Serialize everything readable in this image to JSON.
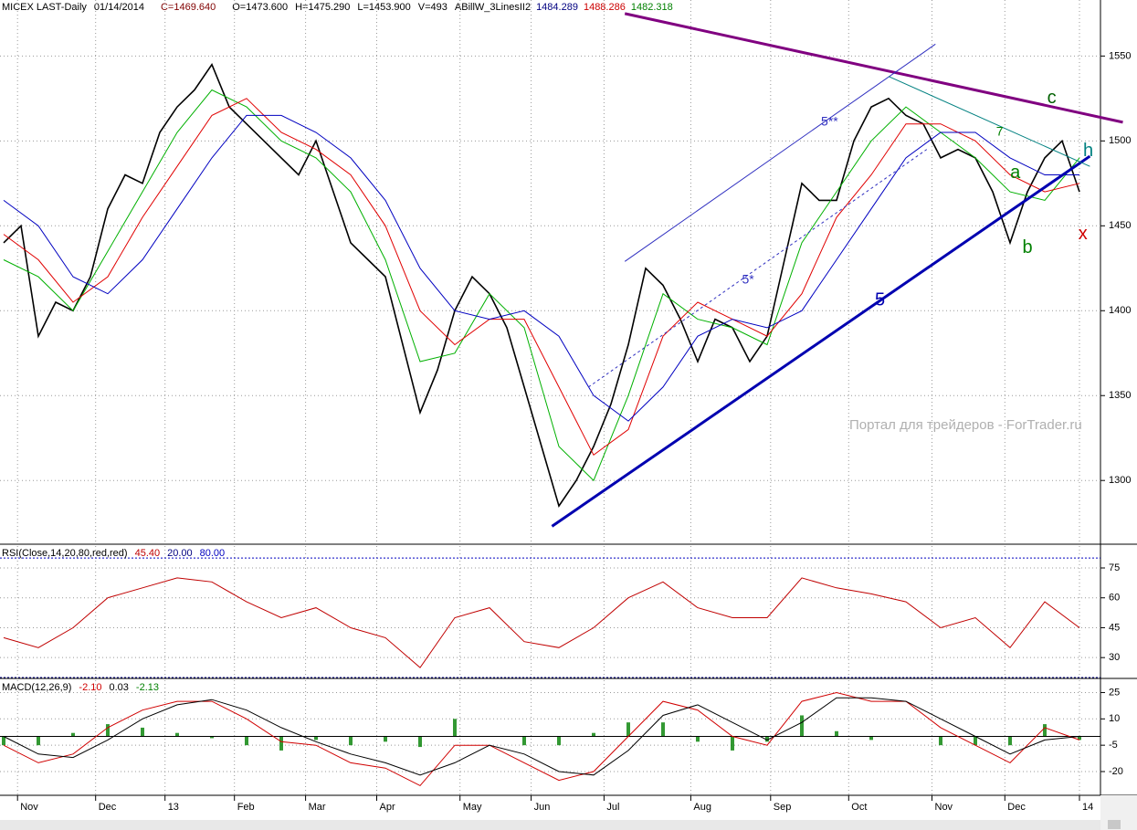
{
  "header": {
    "title": "MICEX LAST-Daily",
    "date": "01/14/2014",
    "close": "C=1469.640",
    "open": "O=1473.600",
    "high": "H=1475.290",
    "low": "L=1453.900",
    "volume": "V=493",
    "indicator": "ABillW_3LinesII2",
    "indicator_values": [
      "1484.289",
      "1488.286",
      "1482.318"
    ],
    "indicator_colors": [
      "#000080",
      "#cc0000",
      "#008000"
    ]
  },
  "watermark": "Портал для трейдеров - ForTrader.ru",
  "chart_data": [
    {
      "type": "line",
      "x": [
        0,
        1,
        2,
        3,
        4,
        5,
        6,
        7,
        8,
        9,
        10,
        11,
        12,
        13,
        14,
        15,
        16,
        17,
        18,
        19,
        20,
        21,
        22,
        23,
        24,
        25,
        26,
        27,
        28,
        29,
        30,
        31,
        32,
        33,
        34,
        35,
        36,
        37,
        38,
        39,
        40,
        41,
        42,
        43,
        44,
        45,
        46,
        47,
        48,
        49,
        50,
        51,
        52,
        53,
        54,
        55,
        56,
        57,
        58,
        59,
        60,
        61,
        62
      ],
      "xlim": [
        0,
        63
      ],
      "xticks": [
        {
          "value": 0.8,
          "label": "Nov"
        },
        {
          "value": 5.3,
          "label": "Dec"
        },
        {
          "value": 9.3,
          "label": "13"
        },
        {
          "value": 13.3,
          "label": "Feb"
        },
        {
          "value": 17.4,
          "label": "Mar"
        },
        {
          "value": 21.5,
          "label": "Apr"
        },
        {
          "value": 26.3,
          "label": "May"
        },
        {
          "value": 30.4,
          "label": "Jun"
        },
        {
          "value": 34.6,
          "label": "Jul"
        },
        {
          "value": 39.6,
          "label": "Aug"
        },
        {
          "value": 44.2,
          "label": "Sep"
        },
        {
          "value": 48.7,
          "label": "Oct"
        },
        {
          "value": 53.5,
          "label": "Nov"
        },
        {
          "value": 57.7,
          "label": "Dec"
        },
        {
          "value": 62,
          "label": "14"
        }
      ],
      "ylim": [
        1263,
        1583
      ],
      "yticks": [
        1300,
        1350,
        1400,
        1450,
        1500,
        1550
      ],
      "grid": true,
      "series": [
        {
          "color": "#000000",
          "values": [
            1440,
            1450,
            1385,
            1405,
            1400,
            1420,
            1460,
            1480,
            1475,
            1505,
            1520,
            1530,
            1545,
            1520,
            1510,
            1500,
            1490,
            1480,
            1500,
            1470,
            1440,
            1430,
            1420,
            1380,
            1340,
            1365,
            1400,
            1420,
            1410,
            1390,
            1355,
            1320,
            1285,
            1300,
            1320,
            1345,
            1380,
            1425,
            1415,
            1395,
            1370,
            1395,
            1390,
            1370,
            1385,
            1430,
            1475,
            1465,
            1465,
            1500,
            1520,
            1525,
            1515,
            1510,
            1490,
            1495,
            1490,
            1470,
            1440,
            1470,
            1490,
            1500,
            1470
          ]
        },
        {
          "color": "#00b000",
          "x": [
            0,
            2,
            4,
            6,
            8,
            10,
            12,
            14,
            16,
            18,
            20,
            22,
            24,
            26,
            28,
            30,
            32,
            34,
            36,
            38,
            40,
            42,
            44,
            46,
            48,
            50,
            52,
            54,
            56,
            58,
            60,
            62
          ],
          "values": [
            1430,
            1420,
            1400,
            1435,
            1470,
            1505,
            1530,
            1520,
            1500,
            1490,
            1470,
            1430,
            1370,
            1375,
            1410,
            1390,
            1320,
            1300,
            1350,
            1410,
            1395,
            1390,
            1380,
            1440,
            1470,
            1500,
            1520,
            1505,
            1490,
            1470,
            1465,
            1490
          ]
        },
        {
          "color": "#e00000",
          "x": [
            0,
            2,
            4,
            6,
            8,
            10,
            12,
            14,
            16,
            18,
            20,
            22,
            24,
            26,
            28,
            30,
            32,
            34,
            36,
            38,
            40,
            42,
            44,
            46,
            48,
            50,
            52,
            54,
            56,
            58,
            60,
            62
          ],
          "values": [
            1445,
            1430,
            1405,
            1420,
            1455,
            1485,
            1515,
            1525,
            1505,
            1495,
            1480,
            1450,
            1400,
            1380,
            1395,
            1395,
            1355,
            1315,
            1330,
            1385,
            1405,
            1395,
            1385,
            1410,
            1455,
            1480,
            1510,
            1510,
            1500,
            1480,
            1470,
            1475
          ]
        },
        {
          "color": "#0000c0",
          "x": [
            0,
            2,
            4,
            6,
            8,
            10,
            12,
            14,
            16,
            18,
            20,
            22,
            24,
            26,
            28,
            30,
            32,
            34,
            36,
            38,
            40,
            42,
            44,
            46,
            48,
            50,
            52,
            54,
            56,
            58,
            60,
            62
          ],
          "values": [
            1465,
            1450,
            1420,
            1410,
            1430,
            1460,
            1490,
            1515,
            1515,
            1505,
            1490,
            1465,
            1425,
            1400,
            1395,
            1400,
            1385,
            1350,
            1335,
            1355,
            1385,
            1395,
            1390,
            1400,
            1430,
            1460,
            1490,
            1505,
            1505,
            1490,
            1480,
            1480
          ]
        }
      ],
      "lines": [
        {
          "color": "#800080",
          "width": 3,
          "x": [
            35.8,
            64.5
          ],
          "y": [
            1575,
            1511
          ]
        },
        {
          "color": "#0000b0",
          "width": 3,
          "x": [
            31.6,
            62.6
          ],
          "y": [
            1273,
            1491
          ]
        },
        {
          "color": "#3030c0",
          "width": 1,
          "x": [
            35.8,
            53.7
          ],
          "y": [
            1429,
            1557
          ]
        },
        {
          "color": "#3030c0",
          "width": 1,
          "dash": true,
          "x": [
            33.7,
            53.2
          ],
          "y": [
            1355,
            1495
          ]
        },
        {
          "color": "#008080",
          "width": 1,
          "x": [
            51,
            62.6
          ],
          "y": [
            1538,
            1485
          ]
        }
      ],
      "annotations": [
        {
          "text": "5**",
          "x": 47.6,
          "y": 1511,
          "color": "#3030c0",
          "size": 14
        },
        {
          "text": "5*",
          "x": 42.9,
          "y": 1418,
          "color": "#3030c0",
          "size": 14
        },
        {
          "text": "5",
          "x": 50.5,
          "y": 1406,
          "color": "#0000b0",
          "size": 20
        },
        {
          "text": "7",
          "x": 57.4,
          "y": 1505,
          "color": "#008000",
          "size": 14
        },
        {
          "text": "c",
          "x": 60.4,
          "y": 1525,
          "color": "#006000",
          "size": 20
        },
        {
          "text": "h",
          "x": 62.5,
          "y": 1494,
          "color": "#008080",
          "size": 20
        },
        {
          "text": "a",
          "x": 58.3,
          "y": 1481,
          "color": "#008000",
          "size": 20
        },
        {
          "text": "b",
          "x": 59,
          "y": 1437,
          "color": "#008000",
          "size": 20
        },
        {
          "text": "x",
          "x": 62.2,
          "y": 1445,
          "color": "#d00000",
          "size": 20
        }
      ]
    },
    {
      "type": "line",
      "title": "RSI(Close,14,20,80,red,red)",
      "x": [
        0,
        2,
        4,
        6,
        8,
        10,
        12,
        14,
        16,
        18,
        20,
        22,
        24,
        26,
        28,
        30,
        32,
        34,
        36,
        38,
        40,
        42,
        44,
        46,
        48,
        50,
        52,
        54,
        56,
        58,
        60,
        62
      ],
      "xlim": [
        0,
        63
      ],
      "ylim": [
        20,
        86
      ],
      "yticks": [
        30,
        45,
        60,
        75
      ],
      "series": [
        {
          "color": "#c00000",
          "readout": "45.40",
          "values": [
            40,
            35,
            45,
            60,
            65,
            70,
            68,
            58,
            50,
            55,
            45,
            40,
            25,
            50,
            55,
            38,
            35,
            45,
            60,
            68,
            55,
            50,
            50,
            70,
            65,
            62,
            58,
            45,
            50,
            35,
            58,
            45
          ]
        }
      ],
      "levels": [
        {
          "value": 20,
          "label": "20.00",
          "color": "#000080"
        },
        {
          "value": 80,
          "label": "80.00",
          "color": "#0000c0"
        }
      ]
    },
    {
      "type": "line",
      "title": "MACD(12,26,9)",
      "x": [
        0,
        2,
        4,
        6,
        8,
        10,
        12,
        14,
        16,
        18,
        20,
        22,
        24,
        26,
        28,
        30,
        32,
        34,
        36,
        38,
        40,
        42,
        44,
        46,
        48,
        50,
        52,
        54,
        56,
        58,
        60,
        62
      ],
      "xlim": [
        0,
        63
      ],
      "ylim": [
        -33,
        32
      ],
      "yticks": [
        -20,
        -5,
        10,
        25
      ],
      "series": [
        {
          "type": "bar",
          "color": "#008000",
          "readout": "-2.13",
          "values": [
            -5,
            -5,
            2,
            7,
            5,
            2,
            -1,
            -5,
            -8,
            -2,
            -5,
            -3,
            -6,
            10,
            0,
            -5,
            -5,
            2,
            8,
            8,
            -3,
            -8,
            -3,
            12,
            3,
            -2,
            0,
            -5,
            -5,
            -5,
            7,
            -2
          ]
        },
        {
          "color": "#d00000",
          "readout": "-2.10",
          "values": [
            -5,
            -15,
            -10,
            5,
            15,
            20,
            20,
            10,
            -3,
            -5,
            -15,
            -18,
            -28,
            -5,
            -5,
            -15,
            -25,
            -20,
            0,
            20,
            15,
            0,
            -5,
            20,
            25,
            20,
            20,
            5,
            -5,
            -15,
            5,
            -2
          ]
        },
        {
          "color": "#000000",
          "readout": "0.03",
          "values": [
            0,
            -10,
            -12,
            -2,
            10,
            18,
            21,
            15,
            5,
            -3,
            -10,
            -15,
            -22,
            -15,
            -5,
            -10,
            -20,
            -22,
            -8,
            12,
            18,
            8,
            -2,
            8,
            22,
            22,
            20,
            10,
            0,
            -10,
            -2,
            0
          ]
        }
      ]
    }
  ]
}
